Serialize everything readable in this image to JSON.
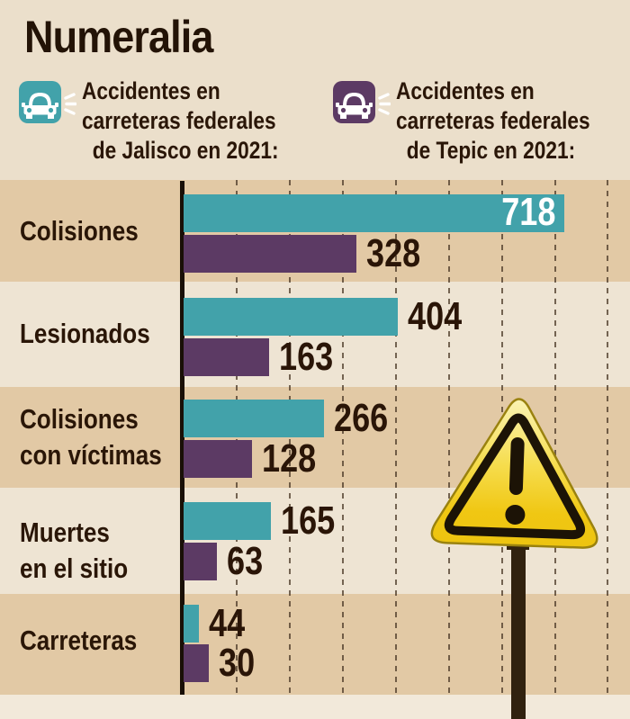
{
  "title": "Numeralia",
  "legend": {
    "jalisco": {
      "icon": "car-honk-icon",
      "color": "#42a2aa",
      "lines": [
        "Accidentes en",
        "carreteras federales",
        "de Jalisco en 2021:"
      ]
    },
    "tepic": {
      "icon": "car-honk-icon",
      "color": "#5c3a64",
      "lines": [
        "Accidentes en",
        "carreteras federales",
        "de Tepic en 2021:"
      ]
    }
  },
  "chart_data": {
    "type": "bar",
    "orientation": "horizontal",
    "title": "Numeralia",
    "series": [
      {
        "name": "Accidentes en carreteras federales de Jalisco en 2021",
        "color": "#42a2aa"
      },
      {
        "name": "Accidentes en carreteras federales de Tepic en 2021",
        "color": "#5c3a64"
      }
    ],
    "categories": [
      "Colisiones",
      "Lesionados",
      "Colisiones con víctimas",
      "Muertes en el sitio",
      "Carreteras"
    ],
    "rows": [
      {
        "label": "Colisiones",
        "label_lines": [
          "Colisiones"
        ],
        "jalisco": 718,
        "tepic": 328,
        "jalisco_w": 423,
        "tepic_w": 192
      },
      {
        "label": "Lesionados",
        "label_lines": [
          "Lesionados"
        ],
        "jalisco": 404,
        "tepic": 163,
        "jalisco_w": 238,
        "tepic_w": 95
      },
      {
        "label": "Colisiones con víctimas",
        "label_lines": [
          "Colisiones",
          "con víctimas"
        ],
        "jalisco": 266,
        "tepic": 128,
        "jalisco_w": 156,
        "tepic_w": 76
      },
      {
        "label": "Muertes en el sitio",
        "label_lines": [
          "Muertes",
          "en el sitio"
        ],
        "jalisco": 165,
        "tepic": 63,
        "jalisco_w": 97,
        "tepic_w": 37
      },
      {
        "label": "Carreteras",
        "label_lines": [
          "Carreteras"
        ],
        "jalisco": 44,
        "tepic": 30,
        "jalisco_w": 17,
        "tepic_w": 28
      }
    ],
    "x_axis": {
      "max": 800,
      "gridline_step": 100,
      "gridlines": "dashed",
      "labels_shown": false
    },
    "value_labels": "shown at bar ends"
  },
  "colors": {
    "background": "#ebdfcb",
    "band_dark": "#e2c9a5",
    "band_light": "#eee4d3",
    "teal": "#42a2aa",
    "purple": "#5c3a64",
    "ink": "#2a1607",
    "sign_yellow": "#f0c713"
  }
}
